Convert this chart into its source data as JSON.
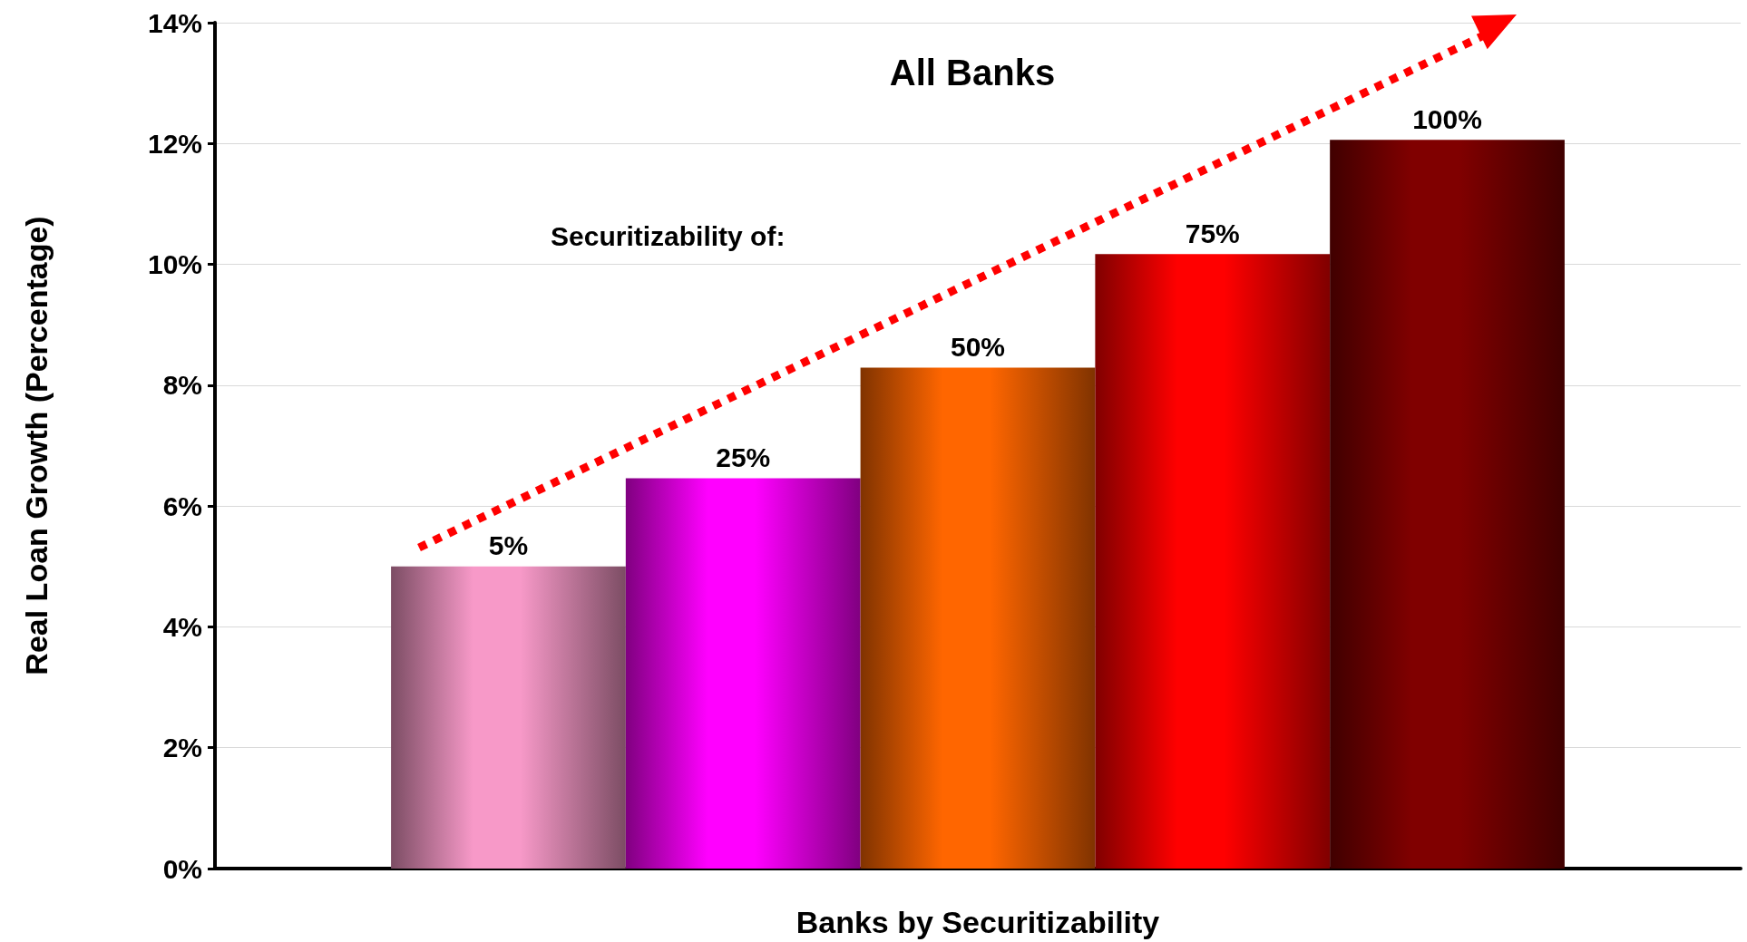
{
  "chart_data": {
    "type": "bar",
    "title": "All Banks",
    "xlabel": "Banks by Securitizability",
    "ylabel": "Real Loan Growth (Percentage)",
    "categories": [
      "5%",
      "25%",
      "50%",
      "75%",
      "100%"
    ],
    "values": [
      5.0,
      6.46,
      8.29,
      10.17,
      12.06
    ],
    "colors": [
      "#f799c8",
      "#ff00ff",
      "#ff6600",
      "#ff0000",
      "#800000"
    ],
    "ylim": [
      0,
      14
    ],
    "yticks": [
      {
        "value": 0,
        "label": "0%"
      },
      {
        "value": 2,
        "label": "2%"
      },
      {
        "value": 4,
        "label": "4%"
      },
      {
        "value": 6,
        "label": "6%"
      },
      {
        "value": 8,
        "label": "8%"
      },
      {
        "value": 10,
        "label": "10%"
      },
      {
        "value": 12,
        "label": "12%"
      },
      {
        "value": 14,
        "label": "14%"
      }
    ],
    "grid": "y",
    "annotations": [
      "Securitizability of:"
    ]
  }
}
